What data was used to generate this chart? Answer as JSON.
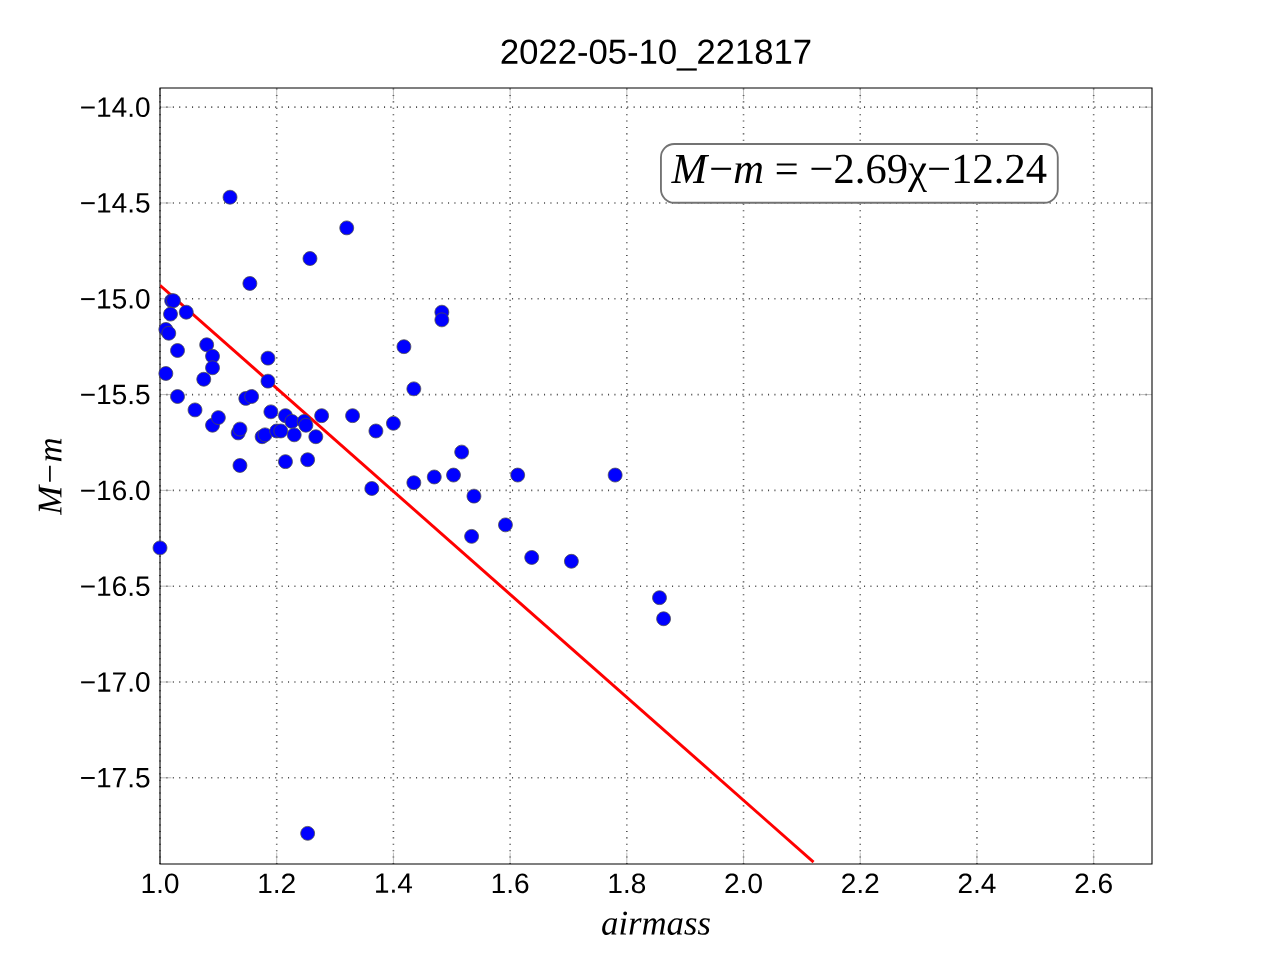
{
  "chart_data": {
    "type": "scatter",
    "title": "2022-05-10_221817",
    "xlabel": "airmass",
    "ylabel": "M−m",
    "annotations": [
      "*M*−*m* = −2.69χ−12.24"
    ],
    "xlim": [
      1.0,
      2.7
    ],
    "ylim": [
      -17.95,
      -13.9
    ],
    "xticks": [
      {
        "value": 1.0,
        "label": "1.0"
      },
      {
        "value": 1.2,
        "label": "1.2"
      },
      {
        "value": 1.4,
        "label": "1.4"
      },
      {
        "value": 1.6,
        "label": "1.6"
      },
      {
        "value": 1.8,
        "label": "1.8"
      },
      {
        "value": 2.0,
        "label": "2.0"
      },
      {
        "value": 2.2,
        "label": "2.2"
      },
      {
        "value": 2.4,
        "label": "2.4"
      },
      {
        "value": 2.6,
        "label": "2.6"
      }
    ],
    "yticks": [
      {
        "value": -17.5,
        "label": "−17.5"
      },
      {
        "value": -17.0,
        "label": "−17.0"
      },
      {
        "value": -16.5,
        "label": "−16.5"
      },
      {
        "value": -16.0,
        "label": "−16.0"
      },
      {
        "value": -15.5,
        "label": "−15.5"
      },
      {
        "value": -15.0,
        "label": "−15.0"
      },
      {
        "value": -14.5,
        "label": "−14.5"
      },
      {
        "value": -14.0,
        "label": "−14.0"
      }
    ],
    "grid": true,
    "marker": "circle",
    "series": [
      {
        "color": "#0000ff",
        "x": [
          1.0,
          1.01,
          1.01,
          1.015,
          1.02,
          1.023,
          1.018,
          1.03,
          1.03,
          1.045,
          1.06,
          1.075,
          1.08,
          1.09,
          1.09,
          1.09,
          1.1,
          1.12,
          1.134,
          1.137,
          1.137,
          1.147,
          1.154,
          1.157,
          1.175,
          1.18,
          1.185,
          1.185,
          1.19,
          1.2,
          1.207,
          1.215,
          1.215,
          1.226,
          1.23,
          1.247,
          1.25,
          1.253,
          1.257,
          1.253,
          1.267,
          1.277,
          1.32,
          1.33,
          1.363,
          1.37,
          1.4,
          1.418,
          1.435,
          1.435,
          1.47,
          1.483,
          1.483,
          1.503,
          1.517,
          1.538,
          1.534,
          1.592,
          1.613,
          1.637,
          1.705,
          1.78,
          1.856,
          1.863
        ],
        "values": [
          -16.3,
          -15.39,
          -15.16,
          -15.18,
          -15.01,
          -15.01,
          -15.08,
          -15.27,
          -15.51,
          -15.07,
          -15.58,
          -15.42,
          -15.24,
          -15.3,
          -15.36,
          -15.66,
          -15.62,
          -14.47,
          -15.7,
          -15.68,
          -15.87,
          -15.52,
          -14.92,
          -15.51,
          -15.72,
          -15.71,
          -15.43,
          -15.31,
          -15.59,
          -15.69,
          -15.69,
          -15.61,
          -15.85,
          -15.64,
          -15.71,
          -15.64,
          -15.66,
          -15.84,
          -14.79,
          -17.79,
          -15.72,
          -15.61,
          -14.63,
          -15.61,
          -15.99,
          -15.69,
          -15.65,
          -15.25,
          -15.47,
          -15.96,
          -15.93,
          -15.07,
          -15.11,
          -15.92,
          -15.8,
          -16.03,
          -16.24,
          -16.18,
          -15.92,
          -16.35,
          -16.37,
          -15.92,
          -16.56,
          -16.67
        ]
      },
      {
        "type": "line",
        "color": "#ff0000",
        "marker": "none",
        "x": [
          1.0,
          2.12
        ],
        "values": [
          -14.93,
          -17.94
        ]
      }
    ]
  }
}
